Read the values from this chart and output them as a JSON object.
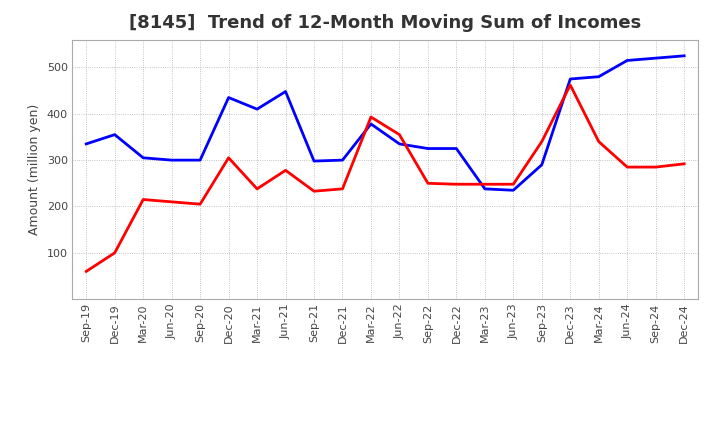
{
  "title": "[8145]  Trend of 12-Month Moving Sum of Incomes",
  "ylabel": "Amount (million yen)",
  "background_color": "#ffffff",
  "grid_color": "#aaaaaa",
  "x_labels": [
    "Sep-19",
    "Dec-19",
    "Mar-20",
    "Jun-20",
    "Sep-20",
    "Dec-20",
    "Mar-21",
    "Jun-21",
    "Sep-21",
    "Dec-21",
    "Mar-22",
    "Jun-22",
    "Sep-22",
    "Dec-22",
    "Mar-23",
    "Jun-23",
    "Sep-23",
    "Dec-23",
    "Mar-24",
    "Jun-24",
    "Sep-24",
    "Dec-24"
  ],
  "ordinary_income": [
    335,
    355,
    305,
    300,
    300,
    435,
    410,
    448,
    298,
    300,
    378,
    335,
    325,
    325,
    238,
    235,
    290,
    475,
    480,
    515,
    520,
    525
  ],
  "net_income": [
    60,
    100,
    215,
    210,
    205,
    305,
    238,
    278,
    233,
    238,
    393,
    355,
    250,
    248,
    248,
    248,
    340,
    462,
    340,
    285,
    285,
    292
  ],
  "ordinary_color": "#0000ff",
  "net_color": "#ff0000",
  "ylim_min": 0,
  "ylim_max": 560,
  "yticks": [
    100,
    200,
    300,
    400,
    500
  ],
  "line_width": 2.0,
  "title_fontsize": 13,
  "title_color": "#333333",
  "axis_label_fontsize": 9,
  "tick_fontsize": 8,
  "legend_fontsize": 10
}
